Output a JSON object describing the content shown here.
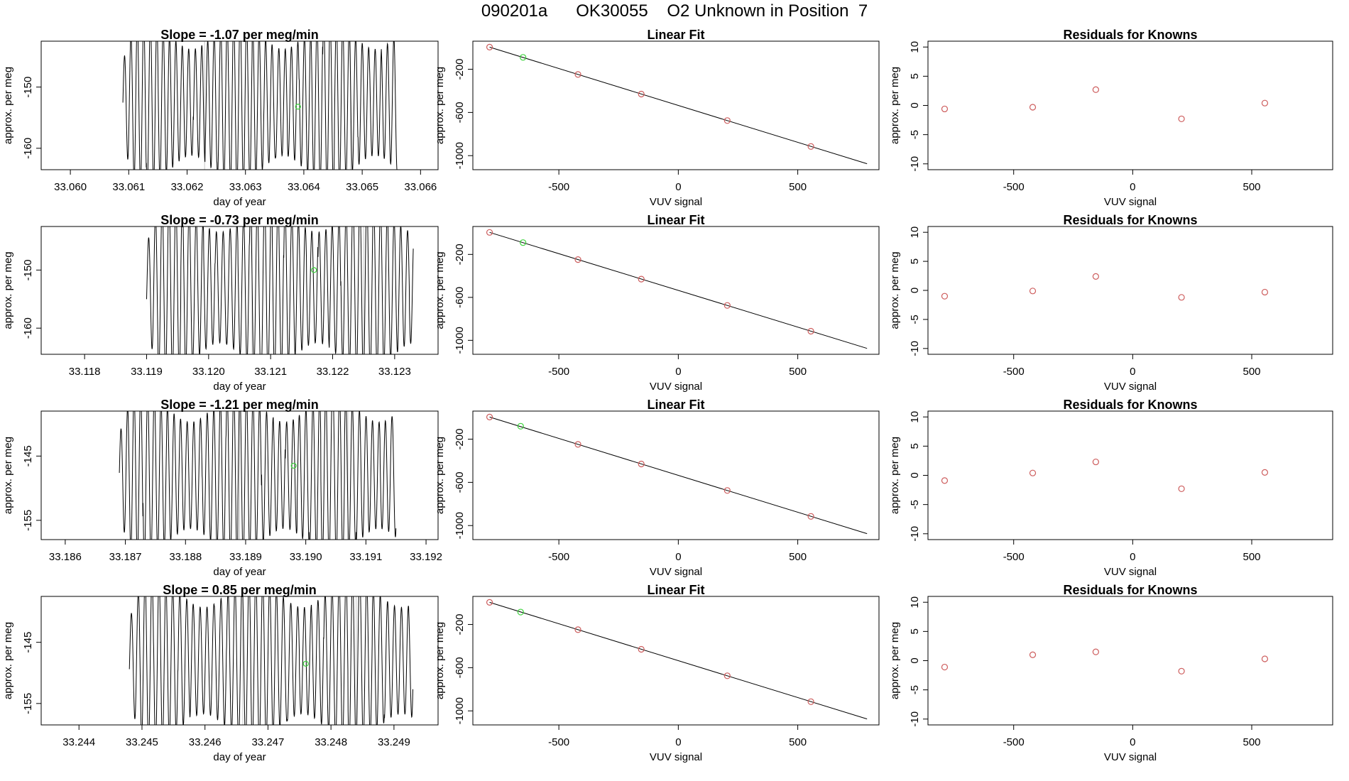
{
  "header": {
    "title": "090201a      OK30055    O2 Unknown in Position  7"
  },
  "colors": {
    "trace": "#000000",
    "known_point": "#cd5c5c",
    "unknown_point": "#3cd33c",
    "fit_line": "#000000",
    "frame": "#000000"
  },
  "chart_data": [
    {
      "type": "line",
      "row": 0,
      "panel": "trace",
      "title": "Slope =  -1.07  per meg/min",
      "xlabel": "day of year",
      "ylabel": "approx. per meg",
      "xlim": [
        33.0595,
        33.0663
      ],
      "ylim": [
        -163.5,
        -142.5
      ],
      "xticks": [
        "33.060",
        "33.061",
        "33.062",
        "33.063",
        "33.064",
        "33.065",
        "33.066"
      ],
      "yticks": [
        "-150",
        "-160"
      ],
      "unknown_point": {
        "x": 33.0639,
        "y": -153.2
      },
      "trace": {
        "start": 33.0609,
        "end": 33.0656,
        "period": 0.00011,
        "center": -152.5,
        "amplitude": 10.5,
        "clip": [
          -163.5,
          -142.5
        ]
      },
      "markers": [
        33.0623,
        33.0648
      ]
    },
    {
      "type": "scatter",
      "row": 0,
      "panel": "fit",
      "title": "Linear Fit",
      "xlabel": "VUV signal",
      "ylabel": "approx. per meg",
      "xlim": [
        -860,
        840
      ],
      "ylim": [
        -1130,
        60
      ],
      "xticks": [
        "-500",
        "0",
        "500"
      ],
      "yticks": [
        "-200",
        "-600",
        "-1000"
      ],
      "line": {
        "x": [
          -790,
          790
        ],
        "y": [
          5,
          -1075
        ]
      },
      "knowns": [
        {
          "x": -790,
          "y": 5
        },
        {
          "x": -420,
          "y": -248
        },
        {
          "x": -155,
          "y": -430
        },
        {
          "x": 205,
          "y": -675
        },
        {
          "x": 555,
          "y": -915
        }
      ],
      "unknown": [
        {
          "x": -650,
          "y": -90
        }
      ]
    },
    {
      "type": "scatter",
      "row": 0,
      "panel": "residuals",
      "title": "Residuals for Knowns",
      "xlabel": "VUV signal",
      "ylabel": "approx. per meg",
      "xlim": [
        -860,
        840
      ],
      "ylim": [
        -11,
        11
      ],
      "xticks": [
        "-500",
        "0",
        "500"
      ],
      "yticks": [
        "10",
        "5",
        "0",
        "-5",
        "-10"
      ],
      "points": [
        {
          "x": -790,
          "y": -0.6
        },
        {
          "x": -420,
          "y": -0.3
        },
        {
          "x": -155,
          "y": 2.7
        },
        {
          "x": 205,
          "y": -2.3
        },
        {
          "x": 555,
          "y": 0.4
        }
      ]
    },
    {
      "type": "line",
      "row": 1,
      "panel": "trace",
      "title": "Slope =  -0.73  per meg/min",
      "xlabel": "day of year",
      "ylabel": "approx. per meg",
      "xlim": [
        33.1173,
        33.1237
      ],
      "ylim": [
        -164.5,
        -142.5
      ],
      "xticks": [
        "33.118",
        "33.119",
        "33.120",
        "33.121",
        "33.122",
        "33.123"
      ],
      "yticks": [
        "-150",
        "-160"
      ],
      "unknown_point": {
        "x": 33.1217,
        "y": -150
      },
      "trace": {
        "start": 33.119,
        "end": 33.1233,
        "period": 0.00011,
        "center": -153,
        "amplitude": 11.5,
        "clip": [
          -164.5,
          -142.5
        ]
      },
      "markers": [
        33.1207,
        33.1225
      ]
    },
    {
      "type": "scatter",
      "row": 1,
      "panel": "fit",
      "title": "Linear Fit",
      "xlabel": "VUV signal",
      "ylabel": "approx. per meg",
      "xlim": [
        -860,
        840
      ],
      "ylim": [
        -1130,
        60
      ],
      "xticks": [
        "-500",
        "0",
        "500"
      ],
      "yticks": [
        "-200",
        "-600",
        "-1000"
      ],
      "line": {
        "x": [
          -790,
          790
        ],
        "y": [
          5,
          -1075
        ]
      },
      "knowns": [
        {
          "x": -790,
          "y": 5
        },
        {
          "x": -420,
          "y": -248
        },
        {
          "x": -155,
          "y": -430
        },
        {
          "x": 205,
          "y": -675
        },
        {
          "x": 555,
          "y": -915
        }
      ],
      "unknown": [
        {
          "x": -650,
          "y": -90
        }
      ]
    },
    {
      "type": "scatter",
      "row": 1,
      "panel": "residuals",
      "title": "Residuals for Knowns",
      "xlabel": "VUV signal",
      "ylabel": "approx. per meg",
      "xlim": [
        -860,
        840
      ],
      "ylim": [
        -11,
        11
      ],
      "xticks": [
        "-500",
        "0",
        "500"
      ],
      "yticks": [
        "10",
        "5",
        "0",
        "-5",
        "-10"
      ],
      "points": [
        {
          "x": -790,
          "y": -1.0
        },
        {
          "x": -420,
          "y": -0.1
        },
        {
          "x": -155,
          "y": 2.4
        },
        {
          "x": 205,
          "y": -1.2
        },
        {
          "x": 555,
          "y": -0.3
        }
      ]
    },
    {
      "type": "line",
      "row": 2,
      "panel": "trace",
      "title": "Slope =  -1.21  per meg/min",
      "xlabel": "day of year",
      "ylabel": "approx. per meg",
      "xlim": [
        33.1856,
        33.1922
      ],
      "ylim": [
        -158,
        -138
      ],
      "xticks": [
        "33.186",
        "33.187",
        "33.188",
        "33.189",
        "33.190",
        "33.191",
        "33.192"
      ],
      "yticks": [
        "-145",
        "-155"
      ],
      "unknown_point": {
        "x": 33.1898,
        "y": -146.5
      },
      "trace": {
        "start": 33.1869,
        "end": 33.1915,
        "period": 0.00011,
        "center": -148,
        "amplitude": 10,
        "clip": [
          -158,
          -138
        ]
      },
      "markers": [
        33.1889,
        33.1907
      ]
    },
    {
      "type": "scatter",
      "row": 2,
      "panel": "fit",
      "title": "Linear Fit",
      "xlabel": "VUV signal",
      "ylabel": "approx. per meg",
      "xlim": [
        -860,
        840
      ],
      "ylim": [
        -1130,
        60
      ],
      "xticks": [
        "-500",
        "0",
        "500"
      ],
      "yticks": [
        "-200",
        "-600",
        "-1000"
      ],
      "line": {
        "x": [
          -790,
          790
        ],
        "y": [
          5,
          -1075
        ]
      },
      "knowns": [
        {
          "x": -790,
          "y": 5
        },
        {
          "x": -420,
          "y": -248
        },
        {
          "x": -155,
          "y": -430
        },
        {
          "x": 205,
          "y": -675
        },
        {
          "x": 555,
          "y": -915
        }
      ],
      "unknown": [
        {
          "x": -660,
          "y": -80
        }
      ]
    },
    {
      "type": "scatter",
      "row": 2,
      "panel": "residuals",
      "title": "Residuals for Knowns",
      "xlabel": "VUV signal",
      "ylabel": "approx. per meg",
      "xlim": [
        -860,
        840
      ],
      "ylim": [
        -11,
        11
      ],
      "xticks": [
        "-500",
        "0",
        "500"
      ],
      "yticks": [
        "10",
        "5",
        "0",
        "-5",
        "-10"
      ],
      "points": [
        {
          "x": -790,
          "y": -0.9
        },
        {
          "x": -420,
          "y": 0.4
        },
        {
          "x": -155,
          "y": 2.3
        },
        {
          "x": 205,
          "y": -2.3
        },
        {
          "x": 555,
          "y": 0.5
        }
      ]
    },
    {
      "type": "line",
      "row": 3,
      "panel": "trace",
      "title": "Slope =  0.85  per meg/min",
      "xlabel": "day of year",
      "ylabel": "approx. per meg",
      "xlim": [
        33.2434,
        33.2497
      ],
      "ylim": [
        -158.5,
        -137.5
      ],
      "xticks": [
        "33.244",
        "33.245",
        "33.246",
        "33.247",
        "33.248",
        "33.249"
      ],
      "yticks": [
        "-145",
        "-155"
      ],
      "unknown_point": {
        "x": 33.2476,
        "y": -148.5
      },
      "trace": {
        "start": 33.2448,
        "end": 33.2493,
        "period": 0.00011,
        "center": -148,
        "amplitude": 10.5,
        "clip": [
          -158.5,
          -137.5
        ]
      },
      "markers": [
        33.2466,
        33.2484
      ]
    },
    {
      "type": "scatter",
      "row": 3,
      "panel": "fit",
      "title": "Linear Fit",
      "xlabel": "VUV signal",
      "ylabel": "approx. per meg",
      "xlim": [
        -860,
        840
      ],
      "ylim": [
        -1130,
        60
      ],
      "xticks": [
        "-500",
        "0",
        "500"
      ],
      "yticks": [
        "-200",
        "-600",
        "-1000"
      ],
      "line": {
        "x": [
          -790,
          790
        ],
        "y": [
          5,
          -1075
        ]
      },
      "knowns": [
        {
          "x": -790,
          "y": 5
        },
        {
          "x": -420,
          "y": -248
        },
        {
          "x": -155,
          "y": -430
        },
        {
          "x": 205,
          "y": -675
        },
        {
          "x": 555,
          "y": -915
        }
      ],
      "unknown": [
        {
          "x": -660,
          "y": -85
        }
      ]
    },
    {
      "type": "scatter",
      "row": 3,
      "panel": "residuals",
      "title": "Residuals for Knowns",
      "xlabel": "VUV signal",
      "ylabel": "approx. per meg",
      "xlim": [
        -860,
        840
      ],
      "ylim": [
        -11,
        11
      ],
      "xticks": [
        "-500",
        "0",
        "500"
      ],
      "yticks": [
        "10",
        "5",
        "0",
        "-5",
        "-10"
      ],
      "points": [
        {
          "x": -790,
          "y": -1.1
        },
        {
          "x": -420,
          "y": 1.0
        },
        {
          "x": -155,
          "y": 1.5
        },
        {
          "x": 205,
          "y": -1.8
        },
        {
          "x": 555,
          "y": 0.3
        }
      ]
    }
  ]
}
